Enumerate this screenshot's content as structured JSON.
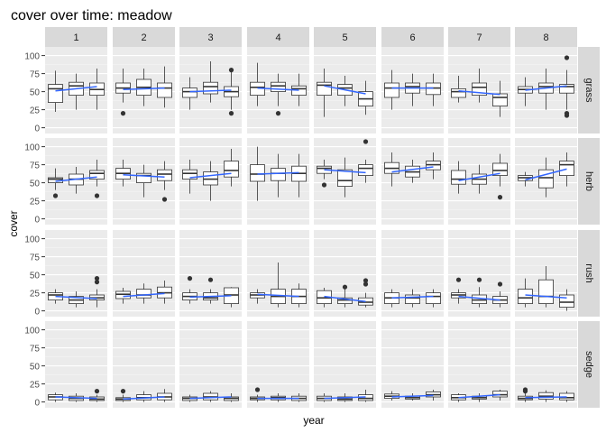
{
  "chart_data": {
    "type": "boxplot",
    "title": "cover over time: meadow",
    "xlabel": "year",
    "ylabel": "cover",
    "ylim": [
      -8,
      112
    ],
    "y_ticks": [
      0,
      25,
      50,
      75,
      100
    ],
    "column_labels": [
      "1",
      "2",
      "3",
      "4",
      "5",
      "6",
      "7",
      "8"
    ],
    "row_labels": [
      "grass",
      "herb",
      "rush",
      "sedge"
    ],
    "box_color": "#333333",
    "trend_color": "#3366FF",
    "outlier_color": "#333333",
    "panel_bg": "#EBEBEB",
    "strip_bg": "#D9D9D9",
    "panels": [
      [
        {
          "boxes": [
            [
              22,
              35,
              54,
              60,
              79
            ],
            [
              25,
              45,
              58,
              63,
              75
            ],
            [
              25,
              45,
              53,
              62,
              82
            ]
          ],
          "outliers": [
            [],
            [],
            []
          ],
          "trend": [
            51,
            57
          ]
        },
        {
          "boxes": [
            [
              35,
              48,
              55,
              62,
              82
            ],
            [
              30,
              45,
              56,
              67,
              82
            ],
            [
              28,
              42,
              55,
              62,
              85
            ]
          ],
          "outliers": [
            [
              20
            ],
            [],
            []
          ],
          "trend": [
            53,
            55
          ]
        },
        {
          "boxes": [
            [
              25,
              42,
              50,
              55,
              70
            ],
            [
              35,
              47,
              57,
              63,
              92
            ],
            [
              25,
              43,
              50,
              57,
              78
            ]
          ],
          "outliers": [
            [],
            [],
            [
              20,
              80
            ]
          ],
          "trend": [
            50,
            52
          ]
        },
        {
          "boxes": [
            [
              30,
              45,
              56,
              63,
              90
            ],
            [
              30,
              50,
              58,
              63,
              75
            ],
            [
              30,
              45,
              54,
              58,
              75
            ]
          ],
          "outliers": [
            [],
            [
              20
            ],
            []
          ],
          "trend": [
            55,
            52
          ]
        },
        {
          "boxes": [
            [
              15,
              45,
              59,
              63,
              82
            ],
            [
              30,
              45,
              55,
              60,
              72
            ],
            [
              18,
              30,
              40,
              50,
              65
            ]
          ],
          "outliers": [
            [],
            [],
            []
          ],
          "trend": [
            58,
            47
          ]
        },
        {
          "boxes": [
            [
              25,
              42,
              55,
              62,
              80
            ],
            [
              30,
              48,
              57,
              62,
              75
            ],
            [
              30,
              46,
              55,
              62,
              75
            ]
          ],
          "outliers": [
            [],
            [],
            []
          ],
          "trend": [
            55,
            55
          ]
        },
        {
          "boxes": [
            [
              35,
              42,
              50,
              54,
              72
            ],
            [
              35,
              45,
              56,
              62,
              82
            ],
            [
              15,
              30,
              42,
              47,
              65
            ]
          ],
          "outliers": [
            [],
            [],
            []
          ],
          "trend": [
            51,
            46
          ]
        },
        {
          "boxes": [
            [
              30,
              48,
              53,
              57,
              70
            ],
            [
              25,
              48,
              57,
              62,
              82
            ],
            [
              25,
              48,
              57,
              60,
              80
            ]
          ],
          "outliers": [
            [],
            [],
            [
              20,
              17,
              97
            ]
          ],
          "trend": [
            52,
            58
          ]
        }
      ],
      [
        {
          "boxes": [
            [
              40,
              50,
              55,
              57,
              70
            ],
            [
              35,
              47,
              55,
              62,
              72
            ],
            [
              45,
              55,
              63,
              67,
              82
            ]
          ],
          "outliers": [
            [
              32
            ],
            [],
            [
              32
            ]
          ],
          "trend": [
            52,
            58
          ]
        },
        {
          "boxes": [
            [
              45,
              55,
              63,
              70,
              82
            ],
            [
              30,
              50,
              60,
              63,
              75
            ],
            [
              40,
              53,
              62,
              68,
              80
            ]
          ],
          "outliers": [
            [],
            [],
            [
              27
            ]
          ],
          "trend": [
            61,
            58
          ]
        },
        {
          "boxes": [
            [
              35,
              55,
              63,
              68,
              82
            ],
            [
              25,
              47,
              55,
              65,
              80
            ],
            [
              45,
              58,
              67,
              80,
              97
            ]
          ],
          "outliers": [
            [],
            [],
            []
          ],
          "trend": [
            57,
            63
          ]
        },
        {
          "boxes": [
            [
              25,
              52,
              62,
              75,
              100
            ],
            [
              30,
              53,
              63,
              70,
              90
            ],
            [
              30,
              52,
              63,
              73,
              90
            ]
          ],
          "outliers": [
            [],
            [],
            []
          ],
          "trend": [
            62,
            64
          ]
        },
        {
          "boxes": [
            [
              55,
              63,
              70,
              73,
              82
            ],
            [
              30,
              45,
              53,
              68,
              85
            ],
            [
              50,
              60,
              70,
              75,
              82
            ]
          ],
          "outliers": [
            [
              47
            ],
            [],
            [
              107
            ]
          ],
          "trend": [
            68,
            64
          ]
        },
        {
          "boxes": [
            [
              45,
              63,
              70,
              78,
              92
            ],
            [
              50,
              58,
              65,
              73,
              82
            ],
            [
              55,
              68,
              75,
              80,
              92
            ]
          ],
          "outliers": [
            [],
            [],
            []
          ],
          "trend": [
            65,
            72
          ]
        },
        {
          "boxes": [
            [
              35,
              48,
              55,
              67,
              80
            ],
            [
              35,
              48,
              55,
              62,
              75
            ],
            [
              45,
              60,
              67,
              77,
              90
            ]
          ],
          "outliers": [
            [],
            [],
            [
              30
            ]
          ],
          "trend": [
            53,
            63
          ]
        },
        {
          "boxes": [
            [
              45,
              53,
              57,
              60,
              65
            ],
            [
              30,
              43,
              57,
              68,
              85
            ],
            [
              45,
              60,
              75,
              80,
              92
            ]
          ],
          "outliers": [
            [],
            [],
            []
          ],
          "trend": [
            54,
            69
          ]
        }
      ],
      [
        {
          "boxes": [
            [
              10,
              15,
              22,
              25,
              30
            ],
            [
              5,
              10,
              15,
              20,
              27
            ],
            [
              5,
              15,
              18,
              22,
              30
            ]
          ],
          "outliers": [
            [],
            [],
            [
              45,
              40
            ]
          ],
          "trend": [
            20,
            17
          ]
        },
        {
          "boxes": [
            [
              10,
              17,
              23,
              27,
              32
            ],
            [
              10,
              18,
              22,
              30,
              38
            ],
            [
              10,
              18,
              25,
              33,
              42
            ]
          ],
          "outliers": [
            [],
            [],
            []
          ],
          "trend": [
            20,
            24
          ]
        },
        {
          "boxes": [
            [
              10,
              15,
              20,
              25,
              30
            ],
            [
              10,
              15,
              18,
              25,
              30
            ],
            [
              5,
              10,
              22,
              32,
              33
            ]
          ],
          "outliers": [
            [
              45
            ],
            [
              43
            ],
            []
          ],
          "trend": [
            19,
            21
          ]
        },
        {
          "boxes": [
            [
              10,
              18,
              22,
              25,
              30
            ],
            [
              5,
              10,
              20,
              30,
              67
            ],
            [
              5,
              10,
              20,
              30,
              38
            ]
          ],
          "outliers": [
            [],
            [],
            []
          ],
          "trend": [
            23,
            20
          ]
        },
        {
          "boxes": [
            [
              5,
              10,
              18,
              28,
              32
            ],
            [
              5,
              10,
              15,
              18,
              30
            ],
            [
              5,
              8,
              12,
              18,
              25
            ]
          ],
          "outliers": [
            [],
            [
              33
            ],
            [
              42,
              37
            ]
          ],
          "trend": [
            20,
            13
          ]
        },
        {
          "boxes": [
            [
              5,
              10,
              18,
              25,
              30
            ],
            [
              5,
              10,
              18,
              22,
              30
            ],
            [
              5,
              10,
              20,
              25,
              30
            ]
          ],
          "outliers": [
            [],
            [],
            []
          ],
          "trend": [
            18,
            20
          ]
        },
        {
          "boxes": [
            [
              10,
              18,
              22,
              25,
              30
            ],
            [
              5,
              10,
              15,
              22,
              33
            ],
            [
              5,
              10,
              15,
              20,
              27
            ]
          ],
          "outliers": [
            [
              43
            ],
            [
              43
            ],
            [
              37
            ]
          ],
          "trend": [
            20,
            15
          ]
        },
        {
          "boxes": [
            [
              5,
              10,
              18,
              30,
              45
            ],
            [
              5,
              10,
              20,
              43,
              62
            ],
            [
              0,
              5,
              12,
              22,
              30
            ]
          ],
          "outliers": [
            [],
            [],
            []
          ],
          "trend": [
            22,
            18
          ]
        }
      ],
      [
        {
          "boxes": [
            [
              0,
              3,
              7,
              10,
              13
            ],
            [
              0,
              2,
              5,
              8,
              12
            ],
            [
              0,
              2,
              4,
              7,
              10
            ]
          ],
          "outliers": [
            [],
            [],
            [
              15
            ]
          ],
          "trend": [
            7,
            5
          ]
        },
        {
          "boxes": [
            [
              0,
              2,
              4,
              6,
              10
            ],
            [
              0,
              3,
              6,
              10,
              15
            ],
            [
              0,
              3,
              7,
              12,
              18
            ]
          ],
          "outliers": [
            [
              15
            ],
            [],
            []
          ],
          "trend": [
            4,
            7
          ]
        },
        {
          "boxes": [
            [
              0,
              2,
              5,
              7,
              10
            ],
            [
              0,
              3,
              7,
              12,
              15
            ],
            [
              0,
              2,
              5,
              7,
              12
            ]
          ],
          "outliers": [
            [],
            [],
            []
          ],
          "trend": [
            5,
            7
          ]
        },
        {
          "boxes": [
            [
              0,
              3,
              5,
              7,
              10
            ],
            [
              0,
              3,
              6,
              8,
              12
            ],
            [
              0,
              2,
              5,
              8,
              12
            ]
          ],
          "outliers": [
            [
              17
            ],
            [],
            []
          ],
          "trend": [
            5,
            5
          ]
        },
        {
          "boxes": [
            [
              0,
              2,
              5,
              8,
              12
            ],
            [
              0,
              2,
              4,
              7,
              12
            ],
            [
              0,
              2,
              5,
              10,
              17
            ]
          ],
          "outliers": [
            [],
            [],
            []
          ],
          "trend": [
            5,
            7
          ]
        },
        {
          "boxes": [
            [
              2,
              5,
              8,
              11,
              15
            ],
            [
              2,
              4,
              6,
              8,
              12
            ],
            [
              2,
              7,
              10,
              14,
              17
            ]
          ],
          "outliers": [
            [],
            [],
            []
          ],
          "trend": [
            7,
            9
          ]
        },
        {
          "boxes": [
            [
              0,
              3,
              6,
              10,
              12
            ],
            [
              0,
              4,
              6,
              8,
              12
            ],
            [
              2,
              7,
              10,
              15,
              17
            ]
          ],
          "outliers": [
            [],
            [],
            []
          ],
          "trend": [
            6,
            10
          ]
        },
        {
          "boxes": [
            [
              0,
              3,
              5,
              8,
              12
            ],
            [
              0,
              4,
              8,
              13,
              16
            ],
            [
              0,
              3,
              6,
              12,
              15
            ]
          ],
          "outliers": [
            [
              17,
              15
            ],
            [],
            []
          ],
          "trend": [
            6,
            7
          ]
        }
      ]
    ]
  }
}
